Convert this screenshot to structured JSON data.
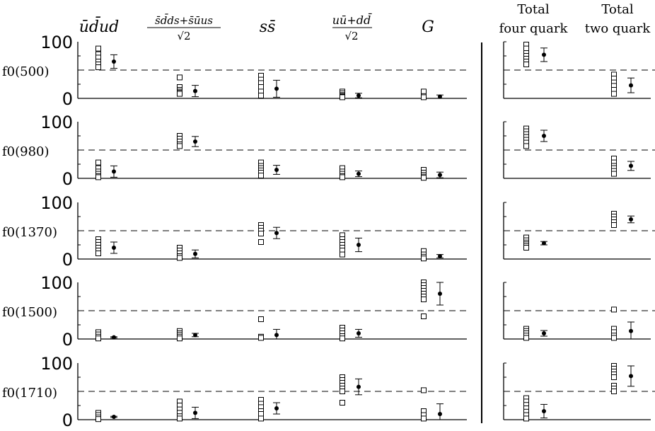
{
  "chart_data": {
    "type": "scatter",
    "description_of_layout": "",
    "columns_left": [
      {
        "key": "udud",
        "label": "ūd̄ud"
      },
      {
        "key": "ssqq",
        "label_num": "s̄d̄ds+s̄ūus",
        "label_den": "√2"
      },
      {
        "key": "ss",
        "label": "ss̄"
      },
      {
        "key": "nn",
        "label_num": "uū+dd̄",
        "label_den": "√2"
      },
      {
        "key": "G",
        "label": "G"
      }
    ],
    "columns_right": [
      {
        "key": "four",
        "label_lines": [
          "Total",
          "four quark"
        ]
      },
      {
        "key": "two",
        "label_lines": [
          "Total",
          "two quark"
        ]
      }
    ],
    "y_tick_labels": [
      "0",
      "100"
    ],
    "ylim": [
      0,
      100
    ],
    "dashed_line_at": 50,
    "rows": [
      {
        "label": "f0(500)",
        "udud": {
          "points": [
            88,
            78,
            72,
            65,
            60,
            55
          ],
          "mean": 65,
          "err": 12
        },
        "ssqq": {
          "points": [
            37,
            20,
            15,
            12,
            10,
            8
          ],
          "mean": 13,
          "err": 10
        },
        "ss": {
          "points": [
            40,
            33,
            27,
            20,
            12,
            5
          ],
          "mean": 17,
          "err": 15
        },
        "nn": {
          "points": [
            12,
            9,
            6,
            4,
            3,
            2
          ],
          "mean": 5,
          "err": 4
        },
        "G": {
          "points": [
            12,
            4,
            2
          ],
          "mean": 3,
          "err": 3
        },
        "four": {
          "points": [
            95,
            88,
            80,
            75,
            70,
            65,
            60
          ],
          "mean": 77,
          "err": 12
        },
        "two": {
          "points": [
            42,
            35,
            28,
            22,
            15,
            8
          ],
          "mean": 23,
          "err": 13
        }
      },
      {
        "label": "f0(980)",
        "udud": {
          "points": [
            28,
            18,
            12,
            8,
            4,
            2
          ],
          "mean": 12,
          "err": 10
        },
        "ssqq": {
          "points": [
            75,
            70,
            65,
            60,
            57
          ],
          "mean": 65,
          "err": 9
        },
        "ss": {
          "points": [
            28,
            22,
            18,
            14,
            10,
            5
          ],
          "mean": 15,
          "err": 8
        },
        "nn": {
          "points": [
            18,
            12,
            8,
            4,
            2
          ],
          "mean": 8,
          "err": 5
        },
        "G": {
          "points": [
            15,
            10,
            6,
            3,
            1
          ],
          "mean": 6,
          "err": 5
        },
        "four": {
          "points": [
            88,
            83,
            78,
            73,
            68,
            63,
            57
          ],
          "mean": 75,
          "err": 10
        },
        "two": {
          "points": [
            35,
            28,
            22,
            18,
            13,
            8
          ],
          "mean": 22,
          "err": 8
        }
      },
      {
        "label": "f0(1370)",
        "udud": {
          "points": [
            35,
            30,
            25,
            20,
            15,
            10
          ],
          "mean": 20,
          "err": 10
        },
        "ssqq": {
          "points": [
            20,
            15,
            10,
            5,
            2
          ],
          "mean": 9,
          "err": 7
        },
        "ss": {
          "points": [
            60,
            55,
            50,
            45,
            30
          ],
          "mean": 46,
          "err": 10
        },
        "nn": {
          "points": [
            42,
            35,
            30,
            25,
            20,
            15,
            8
          ],
          "mean": 25,
          "err": 12
        },
        "G": {
          "points": [
            14,
            8,
            4,
            1
          ],
          "mean": 5,
          "err": 3
        },
        "four": {
          "points": [
            38,
            33,
            29,
            26,
            23,
            20
          ],
          "mean": 28,
          "err": 3
        },
        "two": {
          "points": [
            80,
            75,
            70,
            65,
            60
          ],
          "mean": 70,
          "err": 6
        }
      },
      {
        "label": "f0(1500)",
        "udud": {
          "points": [
            12,
            8,
            4,
            1
          ],
          "mean": 3,
          "err": 1
        },
        "ssqq": {
          "points": [
            14,
            10,
            7,
            4,
            1
          ],
          "mean": 7,
          "err": 3
        },
        "ss": {
          "points": [
            35,
            4,
            2
          ],
          "mean": 7,
          "err": 10
        },
        "nn": {
          "points": [
            20,
            15,
            10,
            5,
            1
          ],
          "mean": 10,
          "err": 7
        },
        "G": {
          "points": [
            100,
            95,
            90,
            85,
            80,
            75,
            70,
            40
          ],
          "mean": 80,
          "err": 20
        },
        "four": {
          "points": [
            18,
            14,
            10,
            6,
            2
          ],
          "mean": 10,
          "err": 5
        },
        "two": {
          "points": [
            52,
            18,
            12,
            6,
            2
          ],
          "mean": 14,
          "err": 16
        }
      },
      {
        "label": "f0(1710)",
        "udud": {
          "points": [
            12,
            8,
            4,
            1
          ],
          "mean": 5,
          "err": 1
        },
        "ssqq": {
          "points": [
            32,
            25,
            18,
            12,
            6,
            2
          ],
          "mean": 12,
          "err": 10
        },
        "ss": {
          "points": [
            35,
            28,
            22,
            15,
            10,
            2
          ],
          "mean": 20,
          "err": 10
        },
        "nn": {
          "points": [
            75,
            70,
            65,
            60,
            55,
            50,
            30
          ],
          "mean": 58,
          "err": 14
        },
        "G": {
          "points": [
            52,
            15,
            8,
            2
          ],
          "mean": 10,
          "err": 18
        },
        "four": {
          "points": [
            38,
            32,
            26,
            20,
            14,
            8,
            2
          ],
          "mean": 15,
          "err": 12
        },
        "two": {
          "points": [
            95,
            90,
            85,
            80,
            75,
            60,
            55,
            50
          ],
          "mean": 77,
          "err": 18
        }
      }
    ]
  }
}
